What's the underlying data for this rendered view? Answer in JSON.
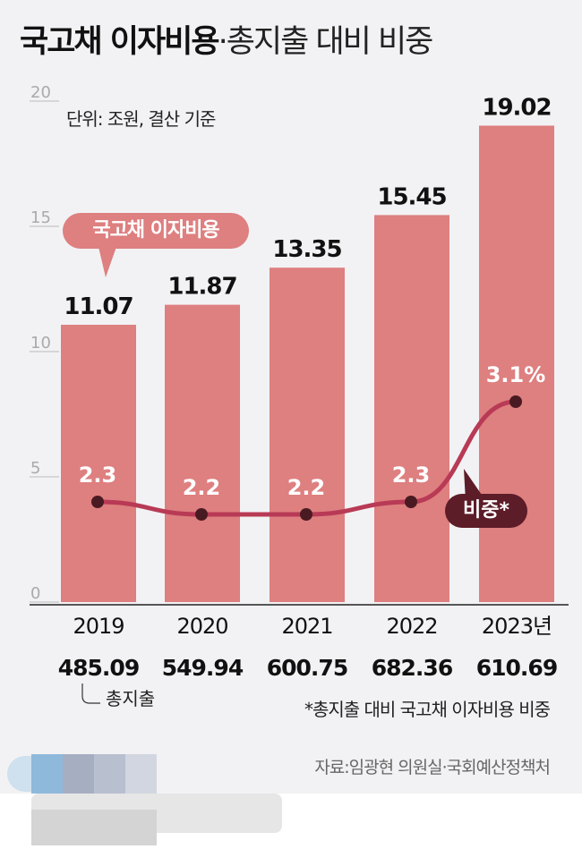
{
  "title": {
    "bold": "국고채 이자비용",
    "light": "·총지출 대비 비중"
  },
  "unit_note": "단위: 조원, 결산 기준",
  "bubble_bars": "국고채 이자비용",
  "bubble_line": "비중*",
  "total_label": "총지출",
  "footnote": "*총지출 대비 국고채 이자비용 비중",
  "source": "자료:임광현 의원실·국회예산정책처",
  "colors": {
    "bar": "#de7f80",
    "line": "#b83a55",
    "dot": "#4a1a22",
    "background": "#f2f2f4"
  },
  "chart_data": {
    "type": "bar",
    "categories": [
      "2019",
      "2020",
      "2021",
      "2022",
      "2023년"
    ],
    "series": [
      {
        "name": "국고채 이자비용",
        "unit": "조원",
        "values": [
          11.07,
          11.87,
          13.35,
          15.45,
          19.02
        ],
        "labels": [
          "11.07",
          "11.87",
          "13.35",
          "15.45",
          "19.02"
        ]
      },
      {
        "name": "비중",
        "type": "line",
        "unit": "%",
        "values": [
          2.3,
          2.2,
          2.2,
          2.3,
          3.1
        ],
        "labels": [
          "2.3",
          "2.2",
          "2.2",
          "2.3",
          "3.1%"
        ]
      },
      {
        "name": "총지출",
        "unit": "조원",
        "values": [
          485.09,
          549.94,
          600.75,
          682.36,
          610.69
        ],
        "labels": [
          "485.09",
          "549.94",
          "600.75",
          "682.36",
          "610.69"
        ]
      }
    ],
    "yticks": [
      "0",
      "5",
      "10",
      "15",
      "20"
    ],
    "ylim": [
      0,
      20
    ],
    "grid": false
  }
}
